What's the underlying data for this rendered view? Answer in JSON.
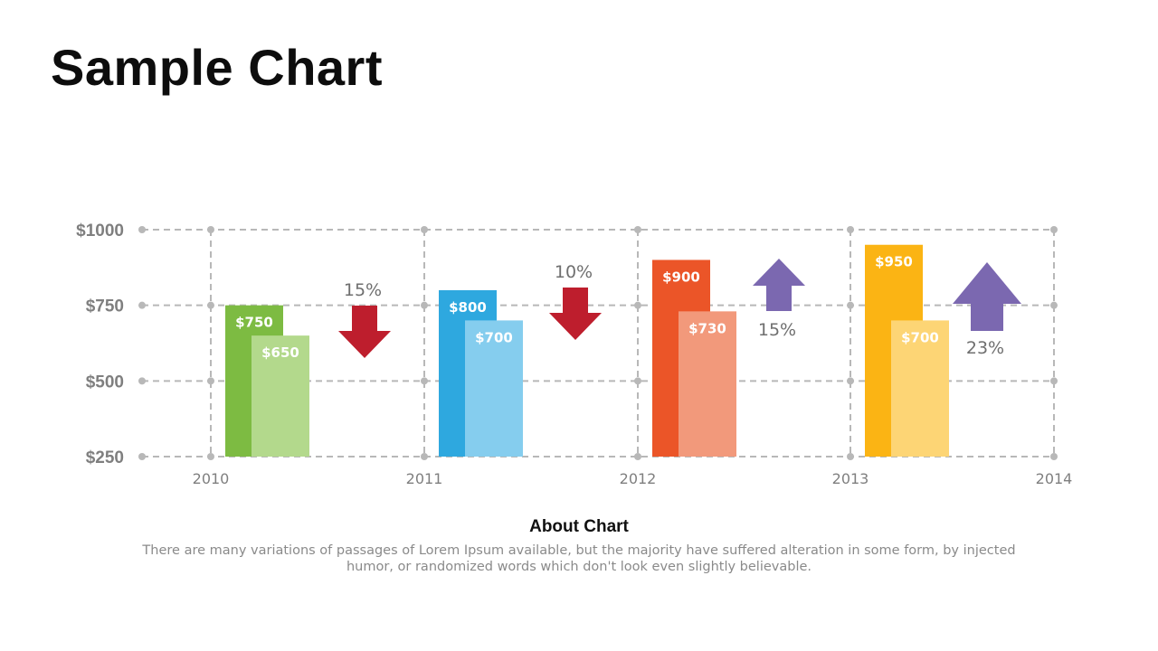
{
  "slide": {
    "title": "Sample Chart",
    "about_title": "About Chart",
    "about_text": "There are many variations of passages of Lorem Ipsum available, but the majority have suffered alteration in some form, by injected humor, or randomized words which don't look even slightly believable."
  },
  "chart_data": {
    "type": "bar",
    "title": "",
    "xlabel": "",
    "ylabel": "",
    "ylim": [
      250,
      1000
    ],
    "y_ticks": [
      250,
      500,
      750,
      1000
    ],
    "y_tick_labels": [
      "$250",
      "$500",
      "$750",
      "$1000"
    ],
    "x_tick_labels": [
      "2010",
      "2011",
      "2012",
      "2013",
      "2014"
    ],
    "grid": true,
    "categories": [
      "2010",
      "2011",
      "2012",
      "2013"
    ],
    "series": [
      {
        "values": [
          750,
          800,
          900,
          950
        ],
        "labels": [
          "$750",
          "$800",
          "$900",
          "$950"
        ]
      },
      {
        "values": [
          650,
          700,
          730,
          700
        ],
        "labels": [
          "$650",
          "$700",
          "$730",
          "$700"
        ]
      }
    ],
    "bar_colors": [
      [
        "#7DBB42",
        "#B3D98C"
      ],
      [
        "#2EA8DF",
        "#85CDEE"
      ],
      [
        "#EB5528",
        "#F2997B"
      ],
      [
        "#FBB414",
        "#FDD575"
      ]
    ],
    "annotations": [
      {
        "text": "15%",
        "direction": "down",
        "color": "#BE1E2D"
      },
      {
        "text": "10%",
        "direction": "down",
        "color": "#BE1E2D"
      },
      {
        "text": "15%",
        "direction": "up",
        "color": "#7B68B0"
      },
      {
        "text": "23%",
        "direction": "up",
        "color": "#7B68B0"
      }
    ]
  }
}
